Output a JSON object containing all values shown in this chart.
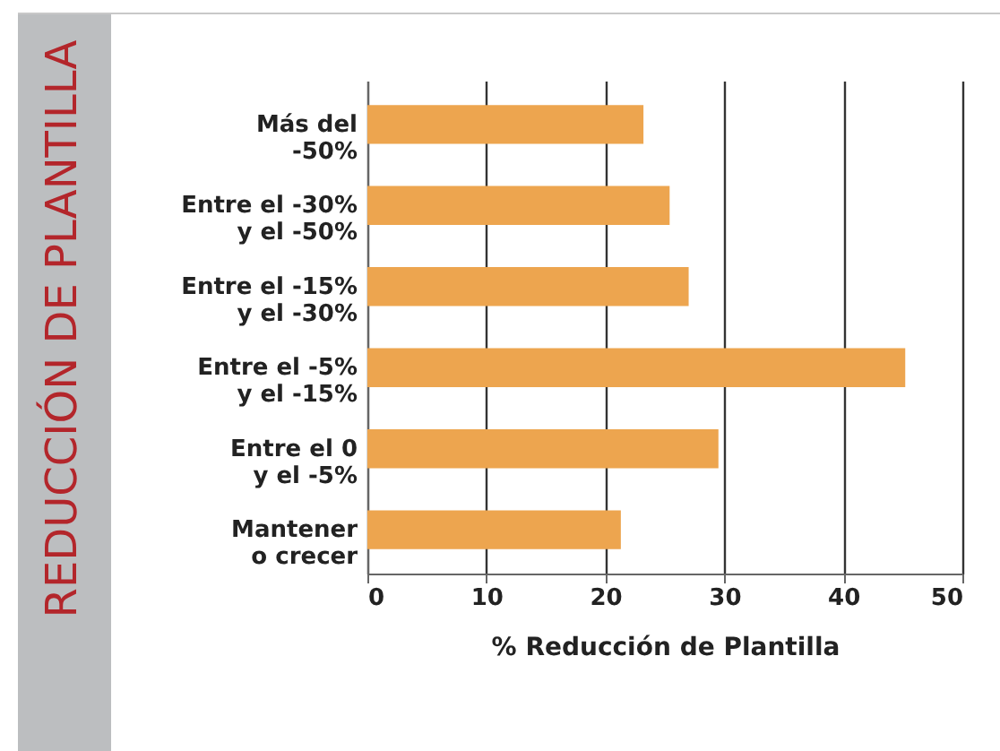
{
  "chart_data": {
    "type": "bar",
    "orientation": "horizontal",
    "xlabel": "% Reducción de Plantilla",
    "ylabel": "REDUCCIÓN DE PLANTILLA",
    "categories": [
      "Más del\n-50%",
      "Entre el -30%\ny el -50%",
      "Entre el -15%\ny el -30%",
      "Entre el -5%\ny el -15%",
      "Entre el 0\ny el -5%",
      "Mantener\no crecer"
    ],
    "values": [
      23.2,
      25.4,
      27.0,
      45.2,
      29.5,
      21.3
    ],
    "color": "#eda54f",
    "xlim": [
      0,
      50
    ],
    "xticks": [
      0,
      10,
      20,
      30,
      40,
      50
    ],
    "grid": "x"
  }
}
